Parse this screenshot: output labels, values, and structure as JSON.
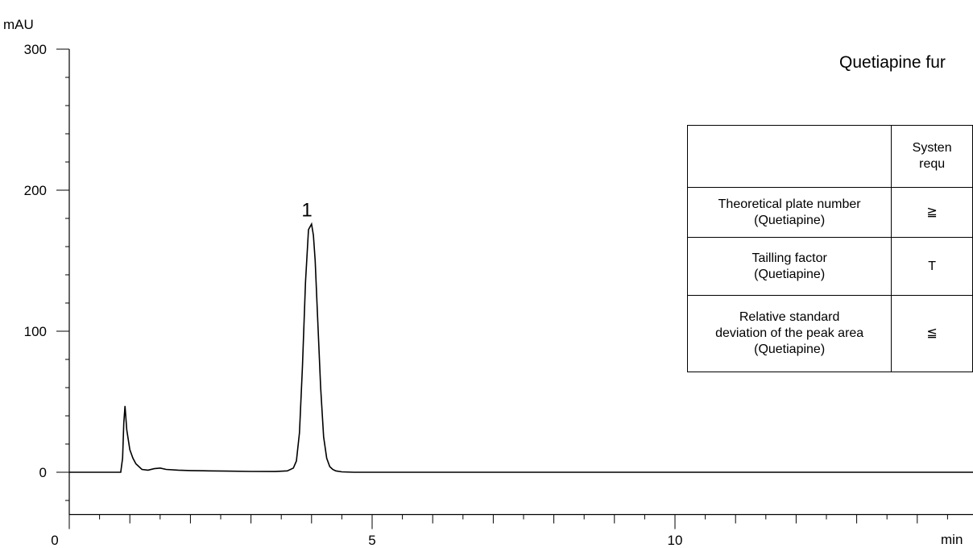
{
  "chart_data": {
    "type": "line",
    "title": "Quetiapine fur",
    "xlabel": "min",
    "ylabel": "mAU",
    "xlim": [
      0,
      15
    ],
    "ylim": [
      -30,
      300
    ],
    "x_major_ticks": [
      0,
      5,
      10
    ],
    "y_major_ticks": [
      0,
      100,
      200,
      300
    ],
    "grid": false,
    "series": [
      {
        "values_note": "",
        "x": [
          0,
          0.85,
          0.88,
          0.9,
          0.92,
          0.95,
          1.0,
          1.05,
          1.1,
          1.2,
          1.3,
          1.4,
          1.5,
          1.6,
          1.8,
          2.0,
          2.3,
          2.6,
          3.0,
          3.4,
          3.6,
          3.7,
          3.75,
          3.8,
          3.85,
          3.9,
          3.95,
          4.0,
          4.03,
          4.06,
          4.1,
          4.15,
          4.2,
          4.25,
          4.3,
          4.35,
          4.4,
          4.5,
          4.7,
          5.0,
          8.0,
          12.0,
          15.0
        ],
        "y": [
          0,
          0,
          10,
          35,
          47,
          30,
          16,
          10,
          6,
          2,
          1.5,
          2.5,
          3,
          2,
          1.5,
          1.2,
          1,
          0.8,
          0.6,
          0.5,
          1,
          3,
          8,
          28,
          75,
          135,
          172,
          176,
          168,
          150,
          110,
          60,
          25,
          10,
          4,
          2,
          1,
          0.3,
          0,
          0,
          0,
          0,
          0
        ]
      }
    ],
    "annotations": [
      {
        "text": "1",
        "x": 4.03,
        "y": 186
      }
    ]
  },
  "table": {
    "header": [
      "",
      "Systen\nrequ"
    ],
    "rows": [
      [
        "Theoretical plate number\n(Quetiapine)",
        "≧"
      ],
      [
        "Tailling factor\n(Quetiapine)",
        "T"
      ],
      [
        "Relative standard\ndeviation of the peak area\n(Quetiapine)",
        "≦"
      ]
    ]
  }
}
